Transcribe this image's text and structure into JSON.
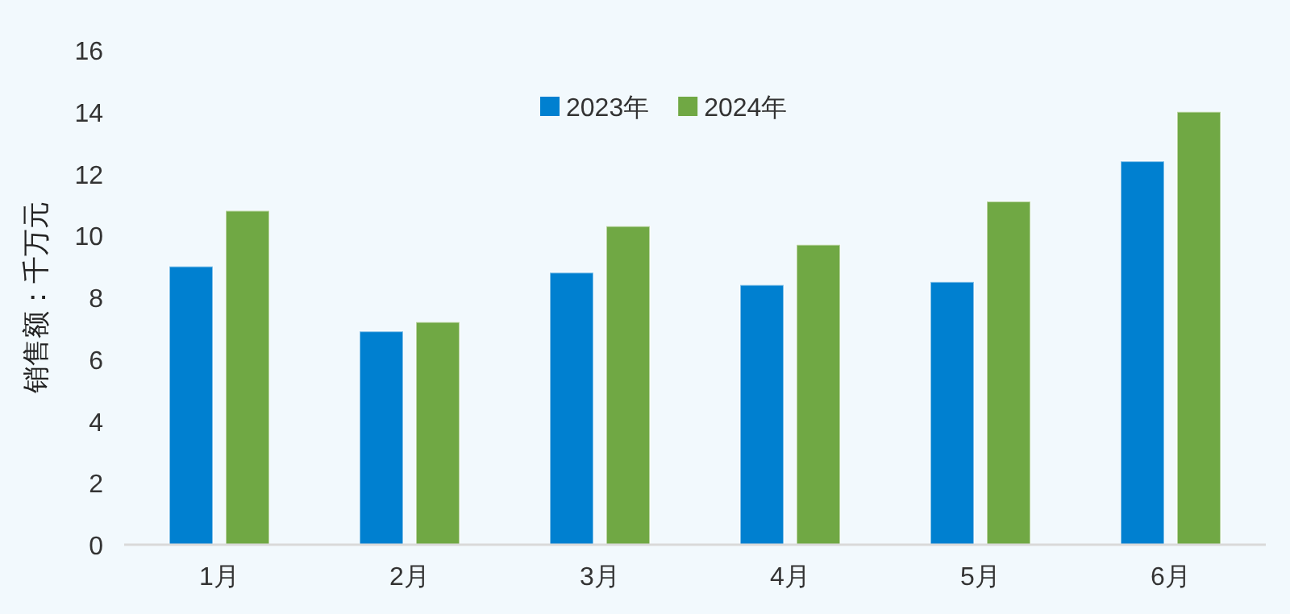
{
  "chart_data": {
    "type": "bar",
    "ylabel": "销售额：千万元",
    "categories": [
      "1月",
      "2月",
      "3月",
      "4月",
      "5月",
      "6月"
    ],
    "series": [
      {
        "name": "2023年",
        "color": "#0080d0",
        "values": [
          9.0,
          6.9,
          8.8,
          8.4,
          8.5,
          12.4
        ]
      },
      {
        "name": "2024年",
        "color": "#70a844",
        "values": [
          10.8,
          7.2,
          10.3,
          9.7,
          11.1,
          14.0
        ]
      }
    ],
    "ylim": [
      0,
      16
    ],
    "yticks": [
      0,
      2,
      4,
      6,
      8,
      10,
      12,
      14,
      16
    ],
    "grid": false,
    "legend": "top"
  }
}
